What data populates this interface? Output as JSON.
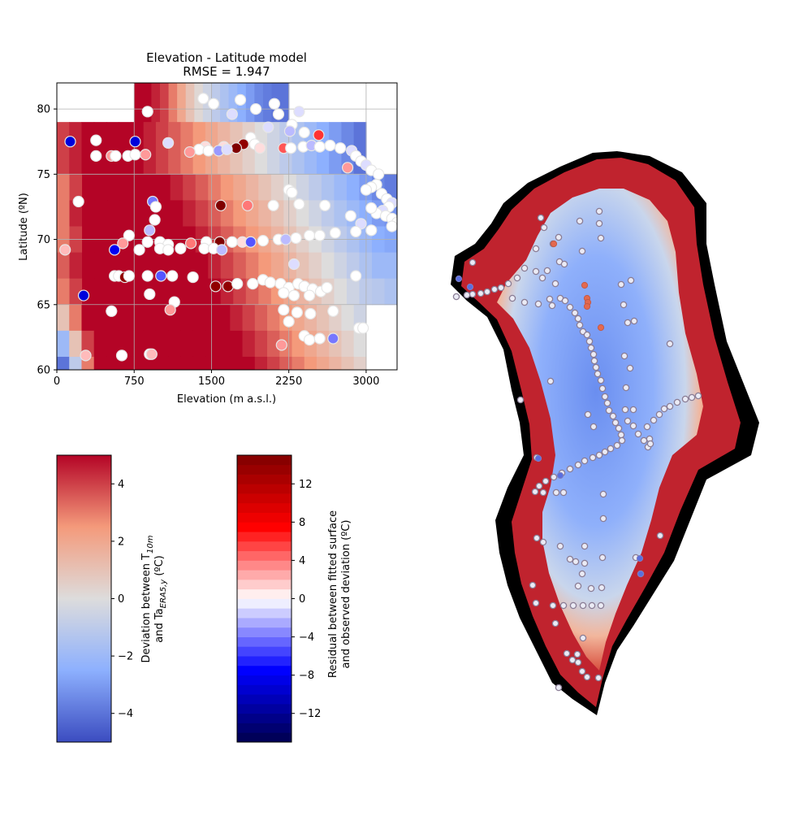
{
  "chart_data": [
    {
      "type": "heatmap",
      "title": "Elevation - Latitude model",
      "subtitle": "RMSE = 1.947",
      "xlabel": "Elevation (m a.s.l.)",
      "ylabel": "Latitude (ºN)",
      "xlim": [
        0,
        3300
      ],
      "ylim": [
        60,
        82
      ],
      "xticks": [
        0,
        750,
        1500,
        2250,
        3000
      ],
      "yticks": [
        60,
        65,
        70,
        75,
        80
      ],
      "grid": true,
      "bands": [
        {
          "lat": [
            79,
            82
          ],
          "e": [
            750,
            2250
          ],
          "values": [
            5,
            5,
            4.5,
            4,
            3,
            2,
            1,
            0.2,
            -0.5,
            -1,
            -1.5,
            -2,
            -2.5,
            -3,
            -3.5,
            -3.8,
            -4,
            -4
          ]
        },
        {
          "lat": [
            75,
            79
          ],
          "e": [
            0,
            3000
          ],
          "values": [
            4,
            4.5,
            5,
            5,
            5,
            5,
            5,
            4.5,
            4,
            3.5,
            3,
            2.5,
            2,
            1.5,
            1,
            0.5,
            0,
            -0.5,
            -1,
            -1.5,
            -2,
            -2.5,
            -3,
            -3.5,
            -4
          ]
        },
        {
          "lat": [
            73,
            75
          ],
          "e": [
            0,
            3300
          ],
          "values": [
            3,
            4,
            5,
            5,
            5,
            5,
            5,
            5,
            5,
            4.5,
            4,
            3.5,
            3,
            2.5,
            2,
            1.5,
            1,
            0.5,
            0,
            -0.5,
            -1,
            -1.5,
            -2,
            -2.5,
            -3,
            -3.5,
            -3.8
          ]
        },
        {
          "lat": [
            71,
            73
          ],
          "e": [
            0,
            3300
          ],
          "values": [
            3,
            4.5,
            5,
            5,
            5,
            5,
            5,
            5,
            5,
            5,
            4.5,
            4,
            3.5,
            3,
            2.5,
            2,
            1.5,
            1,
            0.5,
            0,
            -0.5,
            -1,
            -1.5,
            -2,
            -2.5,
            -3,
            -3.2
          ]
        },
        {
          "lat": [
            69,
            71
          ],
          "e": [
            0,
            3300
          ],
          "values": [
            3,
            4,
            5,
            5,
            5,
            5,
            5,
            5,
            5,
            5,
            5,
            4.5,
            4,
            3.5,
            3,
            2.5,
            2,
            1.5,
            1,
            0.5,
            0,
            -0.5,
            -1,
            -1.5,
            -2,
            -2.5,
            -2.7
          ]
        },
        {
          "lat": [
            67,
            69
          ],
          "e": [
            0,
            3300
          ],
          "values": [
            3.5,
            4.5,
            5,
            5,
            5,
            5,
            5,
            5,
            5,
            5,
            5,
            5,
            4.5,
            4,
            3.5,
            3,
            2.5,
            2,
            1.5,
            1,
            0.5,
            0,
            -0.5,
            -1,
            -1.5,
            -2,
            -2
          ]
        },
        {
          "lat": [
            65,
            67
          ],
          "e": [
            0,
            3300
          ],
          "values": [
            3,
            4,
            5,
            5,
            5,
            5,
            5,
            5,
            5,
            5,
            5,
            5,
            5,
            4.5,
            4,
            3.5,
            3,
            2.5,
            2,
            1.5,
            1,
            0.5,
            0,
            -0.5,
            -1,
            -1.2,
            -1.5
          ]
        },
        {
          "lat": [
            63,
            65
          ],
          "e": [
            0,
            3000
          ],
          "values": [
            1,
            3,
            5,
            5,
            5,
            5,
            5,
            5,
            5,
            5,
            5,
            5,
            5,
            5,
            4.5,
            4,
            3.5,
            3,
            2.5,
            2,
            1.5,
            1,
            0.5,
            0,
            -0.5
          ]
        },
        {
          "lat": [
            61,
            63
          ],
          "e": [
            0,
            3000
          ],
          "values": [
            -2,
            1,
            4,
            5,
            5,
            5,
            5,
            5,
            5,
            5,
            5,
            5,
            5,
            5,
            5,
            4.5,
            4,
            3.5,
            3,
            2.5,
            2,
            1.5,
            1,
            0.5,
            0
          ]
        },
        {
          "lat": [
            60,
            61
          ],
          "e": [
            0,
            3000
          ],
          "values": [
            -4,
            -1,
            3,
            5,
            5,
            5,
            5,
            5,
            5,
            5,
            5,
            5,
            5,
            5,
            5,
            5,
            4.5,
            4,
            3.5,
            3,
            2.5,
            2,
            1.5,
            1,
            0.5
          ]
        }
      ],
      "stations": [
        [
          880,
          79.8,
          0
        ],
        [
          1420,
          80.8,
          0
        ],
        [
          1520,
          80.4,
          0
        ],
        [
          1700,
          79.6,
          -1
        ],
        [
          1780,
          80.7,
          0
        ],
        [
          1930,
          80,
          0
        ],
        [
          2110,
          80.4,
          0
        ],
        [
          2150,
          79.6,
          0
        ],
        [
          2350,
          79.8,
          -1
        ],
        [
          2280,
          78.8,
          0
        ],
        [
          2050,
          78.6,
          -1
        ],
        [
          2260,
          78.3,
          -2
        ],
        [
          2400,
          78.2,
          0
        ],
        [
          2540,
          78,
          6
        ],
        [
          1880,
          77.8,
          0
        ],
        [
          1920,
          77.3,
          0
        ],
        [
          1970,
          77.0,
          1
        ],
        [
          1810,
          77.3,
          14
        ],
        [
          1740,
          77.0,
          16
        ],
        [
          1620,
          77.1,
          1
        ],
        [
          1440,
          77.1,
          1
        ],
        [
          1380,
          76.9,
          0
        ],
        [
          1470,
          76.8,
          0
        ],
        [
          1290,
          76.7,
          3
        ],
        [
          1570,
          76.8,
          -3
        ],
        [
          1650,
          76.9,
          -1
        ],
        [
          1080,
          77.4,
          -1
        ],
        [
          130,
          77.5,
          -9
        ],
        [
          380,
          77.6,
          0
        ],
        [
          380,
          76.4,
          0
        ],
        [
          530,
          76.4,
          3
        ],
        [
          570,
          76.4,
          0
        ],
        [
          690,
          76.4,
          0
        ],
        [
          760,
          76.5,
          0
        ],
        [
          860,
          76.5,
          3
        ],
        [
          760,
          77.5,
          -9
        ],
        [
          2200,
          77.0,
          5
        ],
        [
          2270,
          77.0,
          0
        ],
        [
          2390,
          77.1,
          0
        ],
        [
          2470,
          77.2,
          -2
        ],
        [
          2550,
          77.1,
          0
        ],
        [
          2650,
          77.2,
          0
        ],
        [
          2750,
          77.0,
          0
        ],
        [
          2860,
          76.8,
          -1
        ],
        [
          2900,
          76.4,
          0
        ],
        [
          2950,
          76.0,
          0
        ],
        [
          3000,
          75.7,
          -1
        ],
        [
          3050,
          75.3,
          0
        ],
        [
          2820,
          75.5,
          3
        ],
        [
          3120,
          75.0,
          0
        ],
        [
          3100,
          74.2,
          0
        ],
        [
          3050,
          74.0,
          0
        ],
        [
          3000,
          73.8,
          0
        ],
        [
          3150,
          73.5,
          0
        ],
        [
          3200,
          73.1,
          0
        ],
        [
          3250,
          72.8,
          -1
        ],
        [
          3220,
          72.5,
          0
        ],
        [
          3160,
          72.2,
          -1
        ],
        [
          3100,
          72.0,
          0
        ],
        [
          3190,
          71.8,
          0
        ],
        [
          3250,
          71.6,
          0
        ],
        [
          3300,
          71.3,
          0
        ],
        [
          3250,
          71.0,
          0
        ],
        [
          2950,
          71.2,
          -1
        ],
        [
          2850,
          71.8,
          0
        ],
        [
          3050,
          72.4,
          0
        ],
        [
          2600,
          72.6,
          0
        ],
        [
          2350,
          72.7,
          0
        ],
        [
          2100,
          72.6,
          0
        ],
        [
          1850,
          72.6,
          4
        ],
        [
          1590,
          72.6,
          15
        ],
        [
          2250,
          73.8,
          0
        ],
        [
          2280,
          73.6,
          0
        ],
        [
          210,
          72.9,
          0
        ],
        [
          930,
          72.9,
          -4
        ],
        [
          960,
          72.5,
          0
        ],
        [
          950,
          71.5,
          0
        ],
        [
          900,
          70.7,
          -2
        ],
        [
          700,
          70.3,
          0
        ],
        [
          880,
          69.8,
          0
        ],
        [
          640,
          69.7,
          3
        ],
        [
          1000,
          69.8,
          0
        ],
        [
          1080,
          69.6,
          0
        ],
        [
          1300,
          69.7,
          4
        ],
        [
          1450,
          69.8,
          0
        ],
        [
          1580,
          69.8,
          16
        ],
        [
          1700,
          69.8,
          0
        ],
        [
          1800,
          69.8,
          1
        ],
        [
          1880,
          69.8,
          -5
        ],
        [
          2000,
          69.9,
          0
        ],
        [
          2150,
          70.0,
          0
        ],
        [
          2220,
          70.0,
          -2
        ],
        [
          2320,
          70.1,
          0
        ],
        [
          2450,
          70.3,
          0
        ],
        [
          2550,
          70.3,
          0
        ],
        [
          2700,
          70.5,
          0
        ],
        [
          2900,
          70.6,
          0
        ],
        [
          3050,
          70.7,
          0
        ],
        [
          1000,
          69.3,
          0
        ],
        [
          1080,
          69.2,
          0
        ],
        [
          1200,
          69.3,
          0
        ],
        [
          1430,
          69.3,
          0
        ],
        [
          1520,
          69.3,
          0
        ],
        [
          1600,
          69.2,
          -2
        ],
        [
          800,
          69.2,
          0
        ],
        [
          560,
          69.2,
          -8
        ],
        [
          80,
          69.2,
          2
        ],
        [
          2300,
          68.1,
          -1
        ],
        [
          2900,
          67.2,
          0
        ],
        [
          560,
          67.2,
          0
        ],
        [
          600,
          67.2,
          0
        ],
        [
          660,
          67.1,
          14
        ],
        [
          700,
          67.2,
          0
        ],
        [
          880,
          67.2,
          0
        ],
        [
          1010,
          67.2,
          -5
        ],
        [
          1120,
          67.2,
          0
        ],
        [
          1320,
          67.1,
          0
        ],
        [
          1540,
          66.4,
          14
        ],
        [
          1660,
          66.4,
          14
        ],
        [
          1750,
          66.6,
          0
        ],
        [
          1900,
          66.6,
          0
        ],
        [
          2000,
          66.9,
          0
        ],
        [
          2070,
          66.7,
          0
        ],
        [
          2170,
          66.6,
          0
        ],
        [
          2250,
          66.3,
          0
        ],
        [
          2340,
          66.6,
          0
        ],
        [
          2400,
          66.4,
          0
        ],
        [
          2480,
          66.2,
          0
        ],
        [
          2560,
          66.0,
          0
        ],
        [
          2620,
          66.3,
          0
        ],
        [
          2200,
          65.9,
          0
        ],
        [
          2300,
          65.7,
          0
        ],
        [
          2450,
          65.7,
          0
        ],
        [
          260,
          65.7,
          -9
        ],
        [
          900,
          65.8,
          0
        ],
        [
          1140,
          65.2,
          0
        ],
        [
          1100,
          64.6,
          3
        ],
        [
          2200,
          64.6,
          0
        ],
        [
          2330,
          64.4,
          0
        ],
        [
          2460,
          64.3,
          0
        ],
        [
          2680,
          64.5,
          0
        ],
        [
          2250,
          63.7,
          0
        ],
        [
          2930,
          63.2,
          0
        ],
        [
          2970,
          63.2,
          0
        ],
        [
          2400,
          62.6,
          0
        ],
        [
          2450,
          62.3,
          0
        ],
        [
          2680,
          62.4,
          -4
        ],
        [
          2550,
          62.4,
          0
        ],
        [
          2180,
          61.9,
          3
        ],
        [
          530,
          64.5,
          0
        ],
        [
          280,
          61.1,
          2
        ],
        [
          630,
          61.1,
          0
        ],
        [
          900,
          61.2,
          0
        ],
        [
          920,
          61.2,
          2
        ]
      ],
      "colorbar": {
        "label_line1": "Deviation between T",
        "label_sub1": "10m",
        "label_line2": "and Ta",
        "label_sub2": "ERA5,y",
        "label_unit": " (ºC)",
        "vmin": -5,
        "vmax": 5,
        "ticks": [
          -4,
          -2,
          0,
          2,
          4
        ]
      }
    },
    {
      "type": "colorbar",
      "label_line1": "Residual between fitted surface",
      "label_line2": "and observed deviation (ºC)",
      "vmin": -15,
      "vmax": 15,
      "ticks": [
        -12,
        -8,
        -4,
        0,
        4,
        8,
        12
      ]
    },
    {
      "type": "map",
      "description_colors": {
        "ocean": "#ffffff",
        "tundra": "#000000",
        "coast_warm": "#b40426",
        "interior_cold": "#6f92f3"
      },
      "stations_ringed": true
    }
  ]
}
